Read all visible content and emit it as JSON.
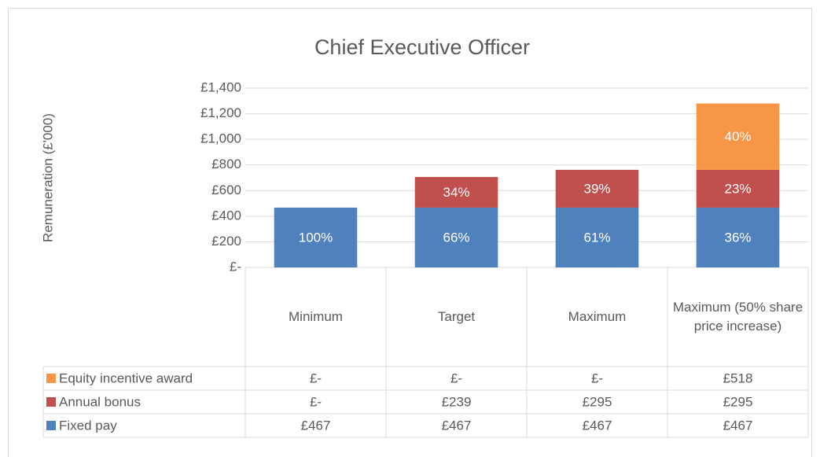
{
  "chart_data": {
    "type": "bar",
    "stacked": true,
    "title": "Chief Executive Officer",
    "ylabel": "Remuneration (£'000)",
    "categories": [
      "Minimum",
      "Target",
      "Maximum",
      "Maximum (50% share price increase)"
    ],
    "series": [
      {
        "name": "Fixed pay",
        "color": "#4f81bd",
        "values": [
          467,
          467,
          467,
          467
        ],
        "value_labels": [
          "£467",
          "£467",
          "£467",
          "£467"
        ],
        "percentages": [
          100,
          66,
          61,
          36
        ],
        "percentage_labels": [
          "100%",
          "66%",
          "61%",
          "36%"
        ]
      },
      {
        "name": "Annual bonus",
        "color": "#c0504d",
        "values": [
          0,
          239,
          295,
          295
        ],
        "value_labels": [
          "£-",
          "£239",
          "£295",
          "£295"
        ],
        "percentages": [
          null,
          34,
          39,
          23
        ],
        "percentage_labels": [
          null,
          "34%",
          "39%",
          "23%"
        ]
      },
      {
        "name": "Equity incentive award",
        "color": "#f79646",
        "values": [
          0,
          0,
          0,
          518
        ],
        "value_labels": [
          "£-",
          "£-",
          "£-",
          "£518"
        ],
        "percentages": [
          null,
          null,
          null,
          40
        ],
        "percentage_labels": [
          null,
          null,
          null,
          "40%"
        ]
      }
    ],
    "ylim": [
      0,
      1400
    ],
    "yticks": [
      {
        "value": 0,
        "label": "£-"
      },
      {
        "value": 200,
        "label": "£200"
      },
      {
        "value": 400,
        "label": "£400"
      },
      {
        "value": 600,
        "label": "£600"
      },
      {
        "value": 800,
        "label": "£800"
      },
      {
        "value": 1000,
        "label": "£1,000"
      },
      {
        "value": 1200,
        "label": "£1,200"
      },
      {
        "value": 1400,
        "label": "£1,400"
      }
    ],
    "grid": true,
    "data_table": true
  }
}
